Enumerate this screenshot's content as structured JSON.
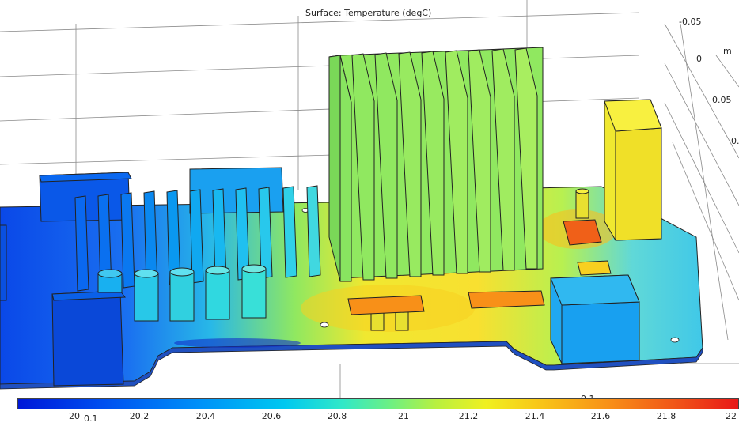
{
  "plot": {
    "title": "Surface: Temperature (degC)"
  },
  "axis": {
    "unit": "m",
    "labels": [
      "-0.05",
      "0",
      "0.05",
      "0.",
      "0.1",
      "0.1"
    ]
  },
  "colorbar": {
    "ticks": [
      "20",
      "20.2",
      "20.4",
      "20.6",
      "20.8",
      "21",
      "21.2",
      "21.4",
      "21.6",
      "21.8",
      "22"
    ],
    "min": 20,
    "max": 22,
    "colors": [
      "#0018d8",
      "#0090f8",
      "#30e8c8",
      "#b8f040",
      "#f0f020",
      "#f89018",
      "#e81818"
    ]
  }
}
